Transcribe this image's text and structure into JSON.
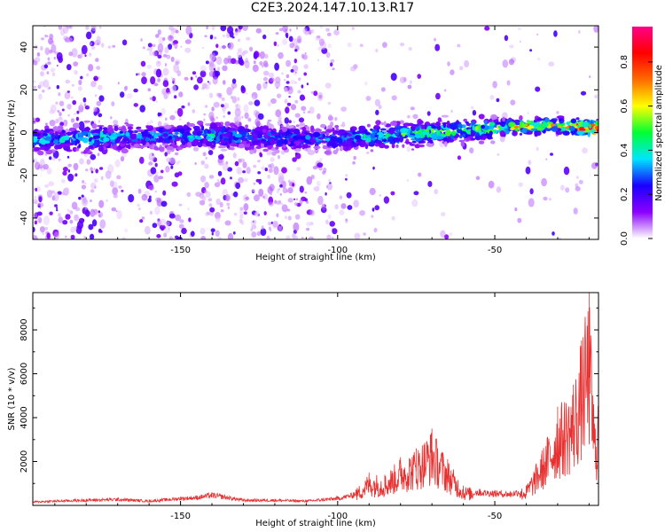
{
  "page": {
    "title": "C2E3.2024.147.10.13.R17"
  },
  "chart_data": [
    {
      "id": "spectrogram",
      "type": "heatmap",
      "title": "C2E3.2024.147.10.13.R17",
      "xlabel": "Height of straight line (km)",
      "ylabel": "Frequency (Hz)",
      "xlim": [
        -197,
        -17
      ],
      "ylim": [
        -50,
        50
      ],
      "xticks": [
        -150,
        -100,
        -50
      ],
      "yticks": [
        -40,
        -20,
        0,
        20,
        40
      ],
      "colorbar": {
        "label": "Normalized spectral amplitude",
        "range": [
          0,
          0.96
        ],
        "ticks": [
          0.0,
          0.2,
          0.4,
          0.6,
          0.8
        ],
        "colors": [
          "#ffffff",
          "#8a00ff",
          "#1a00ff",
          "#00e5ff",
          "#00ff33",
          "#ffff00",
          "#ff6a00",
          "#ff0000",
          "#ff0088"
        ]
      },
      "grid": false,
      "ridge": [
        {
          "x": -185,
          "f": -3.0,
          "a": 0.35
        },
        {
          "x": -175,
          "f": -2.5,
          "a": 0.42
        },
        {
          "x": -165,
          "f": -2.0,
          "a": 0.3
        },
        {
          "x": -150,
          "f": -1.5,
          "a": 0.32
        },
        {
          "x": -140,
          "f": -1.5,
          "a": 0.38
        },
        {
          "x": -125,
          "f": -2.0,
          "a": 0.3
        },
        {
          "x": -110,
          "f": -2.5,
          "a": 0.28
        },
        {
          "x": -100,
          "f": -3.0,
          "a": 0.3
        },
        {
          "x": -90,
          "f": -2.0,
          "a": 0.4
        },
        {
          "x": -80,
          "f": -1.0,
          "a": 0.45
        },
        {
          "x": -70,
          "f": 0.0,
          "a": 0.48
        },
        {
          "x": -60,
          "f": 1.0,
          "a": 0.45
        },
        {
          "x": -50,
          "f": 2.0,
          "a": 0.5
        },
        {
          "x": -40,
          "f": 3.0,
          "a": 0.7
        },
        {
          "x": -30,
          "f": 3.5,
          "a": 0.6
        },
        {
          "x": -20,
          "f": 2.0,
          "a": 0.9
        }
      ]
    },
    {
      "id": "snr",
      "type": "line",
      "xlabel": "Height of straight line (km)",
      "ylabel": "SNR (10 * v/v)",
      "xlim": [
        -197,
        -17
      ],
      "ylim": [
        0,
        9700
      ],
      "xticks": [
        -150,
        -100,
        -50
      ],
      "yticks": [
        2000,
        4000,
        6000,
        8000
      ],
      "grid": false,
      "line_color": "#e83030",
      "x": [
        -197,
        -190,
        -180,
        -170,
        -160,
        -150,
        -145,
        -140,
        -130,
        -120,
        -110,
        -100,
        -95,
        -90,
        -85,
        -80,
        -75,
        -70,
        -65,
        -60,
        -55,
        -50,
        -45,
        -40,
        -35,
        -30,
        -25,
        -20,
        -18,
        -17
      ],
      "y": [
        200,
        250,
        300,
        350,
        250,
        400,
        450,
        600,
        300,
        300,
        250,
        400,
        600,
        1500,
        1400,
        2200,
        2600,
        3500,
        2100,
        900,
        750,
        700,
        650,
        900,
        2500,
        4500,
        5500,
        9700,
        3500,
        5700
      ]
    }
  ]
}
